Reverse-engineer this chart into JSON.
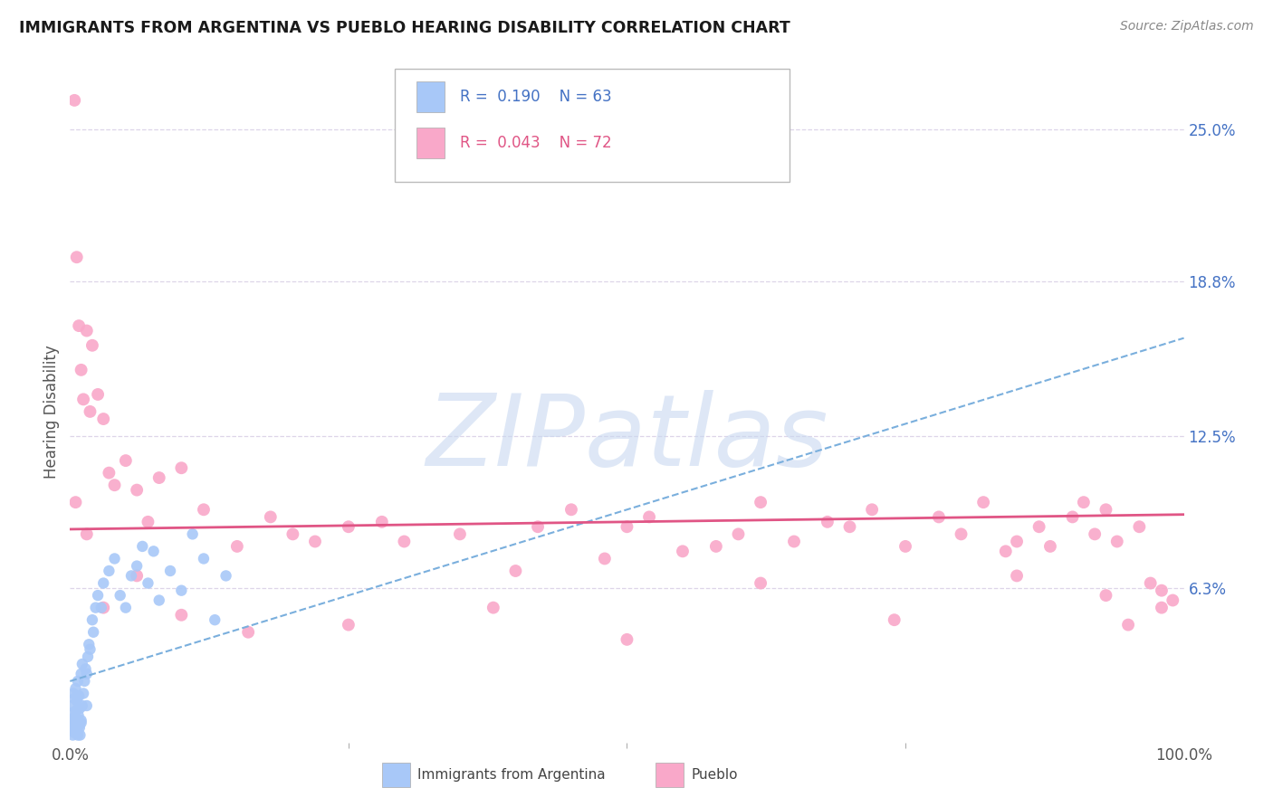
{
  "title": "IMMIGRANTS FROM ARGENTINA VS PUEBLO HEARING DISABILITY CORRELATION CHART",
  "source": "Source: ZipAtlas.com",
  "ylabel": "Hearing Disability",
  "xlim": [
    0,
    100
  ],
  "ylim": [
    0,
    27
  ],
  "yticks": [
    6.3,
    12.5,
    18.8,
    25.0
  ],
  "ytick_labels": [
    "6.3%",
    "12.5%",
    "18.8%",
    "25.0%"
  ],
  "xtick_labels": [
    "0.0%",
    "100.0%"
  ],
  "argentina_color": "#a8c8f8",
  "pueblo_color": "#f9a8c9",
  "argentina_trend_color": "#7aafdd",
  "pueblo_trend_color": "#e05585",
  "background_color": "#ffffff",
  "grid_color": "#ddd5e8",
  "watermark": "ZIPatlas",
  "watermark_color": "#c8d8f0",
  "argentina_R": 0.19,
  "argentina_N": 63,
  "pueblo_R": 0.043,
  "pueblo_N": 72,
  "arg_trend_x0": 0,
  "arg_trend_y0": 2.5,
  "arg_trend_x1": 100,
  "arg_trend_y1": 16.5,
  "pueblo_trend_x0": 0,
  "pueblo_trend_y0": 8.7,
  "pueblo_trend_x1": 100,
  "pueblo_trend_y1": 9.3,
  "argentina_x": [
    0.1,
    0.15,
    0.2,
    0.2,
    0.25,
    0.3,
    0.3,
    0.35,
    0.4,
    0.4,
    0.45,
    0.5,
    0.5,
    0.55,
    0.6,
    0.6,
    0.65,
    0.7,
    0.7,
    0.75,
    0.8,
    0.8,
    0.85,
    0.9,
    0.9,
    1.0,
    1.0,
    1.1,
    1.1,
    1.2,
    1.3,
    1.4,
    1.5,
    1.6,
    1.7,
    1.8,
    2.0,
    2.1,
    2.3,
    2.5,
    2.8,
    3.0,
    3.5,
    4.0,
    4.5,
    5.0,
    5.5,
    6.0,
    6.5,
    7.0,
    7.5,
    8.0,
    9.0,
    10.0,
    11.0,
    12.0,
    13.0,
    14.0,
    0.3,
    0.5,
    0.7,
    1.0,
    1.5
  ],
  "argentina_y": [
    0.8,
    1.2,
    0.5,
    1.5,
    0.3,
    0.7,
    2.0,
    1.0,
    0.4,
    1.8,
    0.9,
    0.6,
    2.2,
    1.3,
    0.5,
    1.7,
    0.8,
    0.4,
    2.5,
    1.1,
    0.7,
    1.9,
    0.6,
    0.3,
    1.4,
    0.8,
    2.8,
    1.5,
    3.2,
    2.0,
    2.5,
    3.0,
    2.8,
    3.5,
    4.0,
    3.8,
    5.0,
    4.5,
    5.5,
    6.0,
    5.5,
    6.5,
    7.0,
    7.5,
    6.0,
    5.5,
    6.8,
    7.2,
    8.0,
    6.5,
    7.8,
    5.8,
    7.0,
    6.2,
    8.5,
    7.5,
    5.0,
    6.8,
    0.5,
    1.0,
    0.3,
    0.9,
    1.5
  ],
  "pueblo_x": [
    0.4,
    0.6,
    0.8,
    1.0,
    1.2,
    1.5,
    1.8,
    2.0,
    2.5,
    3.0,
    3.5,
    4.0,
    5.0,
    6.0,
    7.0,
    8.0,
    10.0,
    12.0,
    15.0,
    18.0,
    20.0,
    22.0,
    25.0,
    28.0,
    30.0,
    35.0,
    40.0,
    42.0,
    45.0,
    48.0,
    50.0,
    52.0,
    55.0,
    58.0,
    60.0,
    62.0,
    65.0,
    68.0,
    70.0,
    72.0,
    75.0,
    78.0,
    80.0,
    82.0,
    84.0,
    85.0,
    87.0,
    88.0,
    90.0,
    91.0,
    92.0,
    93.0,
    94.0,
    95.0,
    96.0,
    97.0,
    98.0,
    99.0,
    0.5,
    1.5,
    3.0,
    6.0,
    10.0,
    16.0,
    25.0,
    38.0,
    50.0,
    62.0,
    74.0,
    85.0,
    93.0,
    98.0
  ],
  "pueblo_y": [
    26.2,
    19.8,
    17.0,
    15.2,
    14.0,
    16.8,
    13.5,
    16.2,
    14.2,
    13.2,
    11.0,
    10.5,
    11.5,
    10.3,
    9.0,
    10.8,
    11.2,
    9.5,
    8.0,
    9.2,
    8.5,
    8.2,
    8.8,
    9.0,
    8.2,
    8.5,
    7.0,
    8.8,
    9.5,
    7.5,
    8.8,
    9.2,
    7.8,
    8.0,
    8.5,
    9.8,
    8.2,
    9.0,
    8.8,
    9.5,
    8.0,
    9.2,
    8.5,
    9.8,
    7.8,
    8.2,
    8.8,
    8.0,
    9.2,
    9.8,
    8.5,
    9.5,
    8.2,
    4.8,
    8.8,
    6.5,
    6.2,
    5.8,
    9.8,
    8.5,
    5.5,
    6.8,
    5.2,
    4.5,
    4.8,
    5.5,
    4.2,
    6.5,
    5.0,
    6.8,
    6.0,
    5.5
  ]
}
